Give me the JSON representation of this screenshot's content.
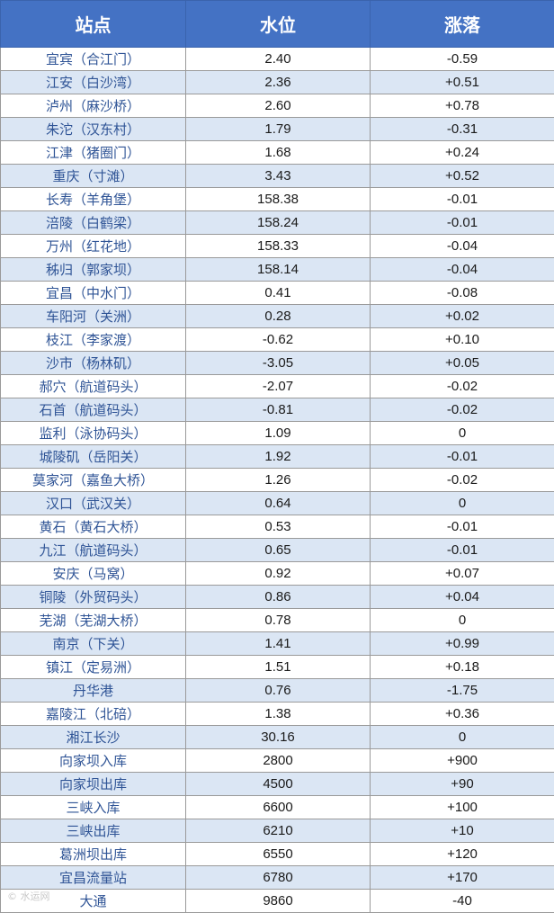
{
  "headers": [
    "站点",
    "水位",
    "涨落"
  ],
  "rows": [
    [
      "宜宾（合江门）",
      "2.40",
      "-0.59"
    ],
    [
      "江安（白沙湾）",
      "2.36",
      "+0.51"
    ],
    [
      "泸州（麻沙桥）",
      "2.60",
      "+0.78"
    ],
    [
      "朱沱（汉东村）",
      "1.79",
      "-0.31"
    ],
    [
      "江津（猪圈门）",
      "1.68",
      "+0.24"
    ],
    [
      "重庆（寸滩）",
      "3.43",
      "+0.52"
    ],
    [
      "长寿（羊角堡）",
      "158.38",
      "-0.01"
    ],
    [
      "涪陵（白鹤梁）",
      "158.24",
      "-0.01"
    ],
    [
      "万州（红花地）",
      "158.33",
      "-0.04"
    ],
    [
      "秭归（郭家坝）",
      "158.14",
      "-0.04"
    ],
    [
      "宜昌（中水门）",
      "0.41",
      "-0.08"
    ],
    [
      "车阳河（关洲）",
      "0.28",
      "+0.02"
    ],
    [
      "枝江（李家渡）",
      "-0.62",
      "+0.10"
    ],
    [
      "沙市（杨林矶）",
      "-3.05",
      "+0.05"
    ],
    [
      "郝穴（航道码头）",
      "-2.07",
      "-0.02"
    ],
    [
      "石首（航道码头）",
      "-0.81",
      "-0.02"
    ],
    [
      "监利（泳协码头）",
      "1.09",
      "0"
    ],
    [
      "城陵矶（岳阳关）",
      "1.92",
      "-0.01"
    ],
    [
      "莫家河（嘉鱼大桥）",
      "1.26",
      "-0.02"
    ],
    [
      "汉口（武汉关）",
      "0.64",
      "0"
    ],
    [
      "黄石（黄石大桥）",
      "0.53",
      "-0.01"
    ],
    [
      "九江（航道码头）",
      "0.65",
      "-0.01"
    ],
    [
      "安庆（马窝）",
      "0.92",
      "+0.07"
    ],
    [
      "铜陵（外贸码头）",
      "0.86",
      "+0.04"
    ],
    [
      "芜湖（芜湖大桥）",
      "0.78",
      "0"
    ],
    [
      "南京（下关）",
      "1.41",
      "+0.99"
    ],
    [
      "镇江（定易洲）",
      "1.51",
      "+0.18"
    ],
    [
      "丹华港",
      "0.76",
      "-1.75"
    ],
    [
      "嘉陵江（北碚）",
      "1.38",
      "+0.36"
    ],
    [
      "湘江长沙",
      "30.16",
      "0"
    ],
    [
      "向家坝入库",
      "2800",
      "+900"
    ],
    [
      "向家坝出库",
      "4500",
      "+90"
    ],
    [
      "三峡入库",
      "6600",
      "+100"
    ],
    [
      "三峡出库",
      "6210",
      "+10"
    ],
    [
      "葛洲坝出库",
      "6550",
      "+120"
    ],
    [
      "宜昌流量站",
      "6780",
      "+170"
    ],
    [
      "大通",
      "9860",
      "-40"
    ]
  ],
  "watermark": "© 水运网"
}
